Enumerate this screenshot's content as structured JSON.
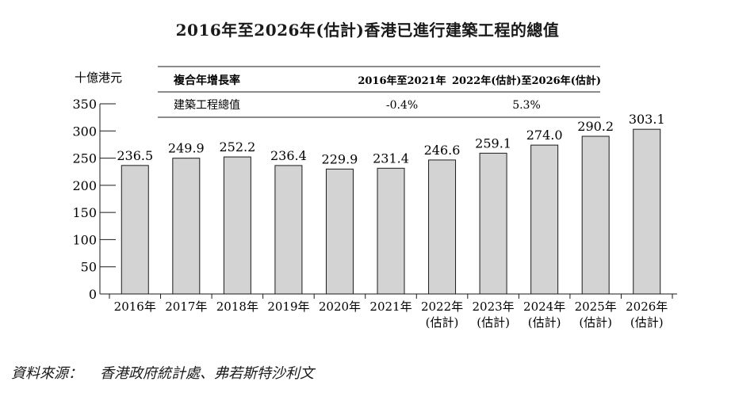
{
  "title": "2016年至2026年(估計)香港已進行建築工程的總值",
  "chart_data": {
    "type": "bar",
    "title": "2016年至2026年(估計)香港已進行建築工程的總值",
    "ylabel": "十億港元",
    "ylim": [
      0,
      350
    ],
    "yticks": [
      0,
      50,
      100,
      150,
      200,
      250,
      300,
      350
    ],
    "categories": [
      {
        "year": "2016年",
        "note": ""
      },
      {
        "year": "2017年",
        "note": ""
      },
      {
        "year": "2018年",
        "note": ""
      },
      {
        "year": "2019年",
        "note": ""
      },
      {
        "year": "2020年",
        "note": ""
      },
      {
        "year": "2021年",
        "note": ""
      },
      {
        "year": "2022年",
        "note": "(估計)"
      },
      {
        "year": "2023年",
        "note": "(估計)"
      },
      {
        "year": "2024年",
        "note": "(估計)"
      },
      {
        "year": "2025年",
        "note": "(估計)"
      },
      {
        "year": "2026年",
        "note": "(估計)"
      }
    ],
    "values": [
      236.5,
      249.9,
      252.2,
      236.4,
      229.9,
      231.4,
      246.6,
      259.1,
      274.0,
      290.2,
      303.1
    ],
    "value_labels": [
      "236.5",
      "249.9",
      "252.2",
      "236.4",
      "229.9",
      "231.4",
      "246.6",
      "259.1",
      "274.0",
      "290.2",
      "303.1"
    ],
    "bar_color": "#d3d3d3",
    "grid": false,
    "cagr_table": {
      "header": [
        "複合年增長率",
        "2016年至2021年",
        "2022年(估計)至2026年(估計)"
      ],
      "row": [
        "建築工程總值",
        "-0.4%",
        "5.3%"
      ]
    }
  },
  "source": {
    "label": "資料來源：",
    "text": "香港政府統計處、弗若斯特沙利文"
  }
}
